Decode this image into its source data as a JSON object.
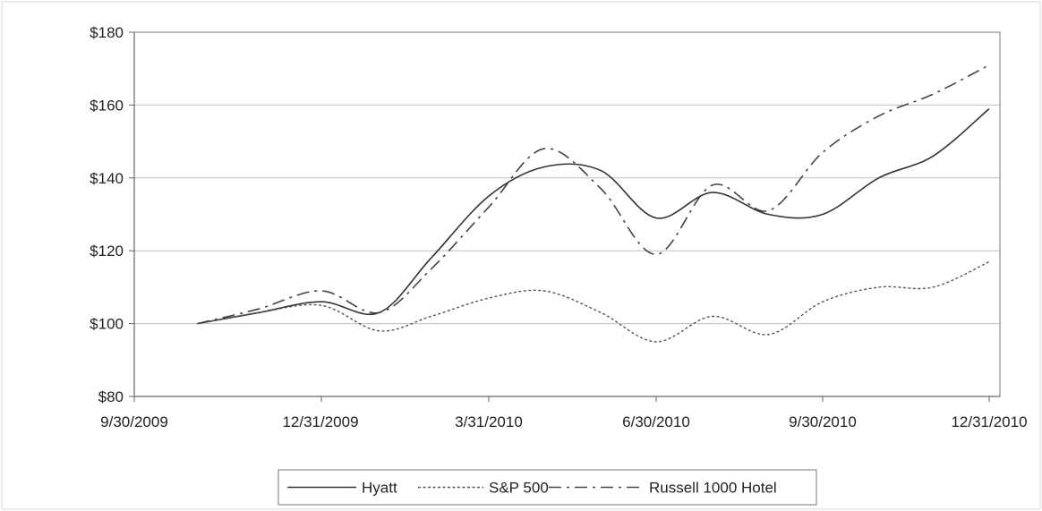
{
  "chart_data": {
    "type": "line",
    "title": "",
    "xlabel": "",
    "ylabel": "",
    "x_ticks": [
      "9/30/2009",
      "12/31/2009",
      "3/31/2010",
      "6/30/2010",
      "9/30/2010",
      "12/31/2010"
    ],
    "y_ticks": [
      "$80",
      "$100",
      "$120",
      "$140",
      "$160",
      "$180"
    ],
    "ylim": [
      80,
      180
    ],
    "grid": "horizontal",
    "legend_position": "bottom",
    "x": [
      "10/31/2009",
      "11/30/2009",
      "12/31/2009",
      "1/31/2010",
      "2/28/2010",
      "3/31/2010",
      "4/30/2010",
      "5/31/2010",
      "6/30/2010",
      "7/31/2010",
      "8/31/2010",
      "9/30/2010",
      "10/31/2010",
      "11/30/2010",
      "12/31/2010"
    ],
    "series": [
      {
        "name": "Hyatt",
        "style": "solid",
        "color": "#333333",
        "values": [
          100,
          103,
          106,
          103,
          118,
          135,
          143,
          142,
          129,
          136,
          130,
          130,
          140,
          146,
          159
        ]
      },
      {
        "name": "S&P 500",
        "style": "dotted",
        "color": "#555555",
        "values": [
          100,
          103,
          105,
          98,
          102,
          107,
          109,
          103,
          95,
          102,
          97,
          106,
          110,
          110,
          117
        ]
      },
      {
        "name": "Russell 1000 Hotel",
        "style": "dashdot",
        "color": "#444444",
        "values": [
          100,
          104,
          109,
          103,
          115,
          132,
          148,
          137,
          119,
          138,
          131,
          147,
          157,
          163,
          171
        ]
      }
    ]
  }
}
